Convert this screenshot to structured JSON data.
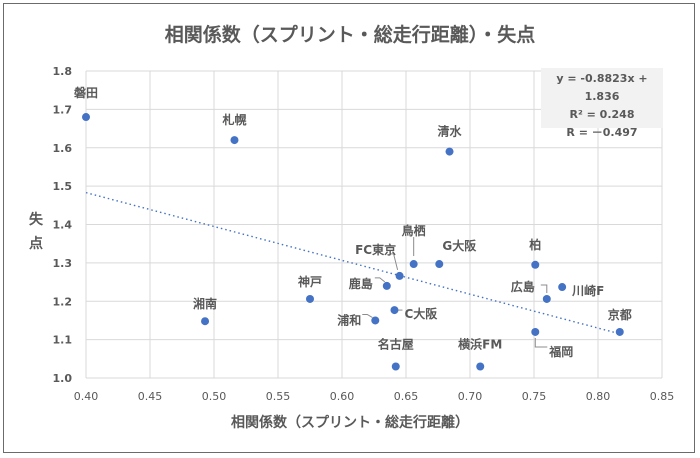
{
  "chart_data": {
    "type": "scatter",
    "title": "相関係数（スプリント・総走行距離）・失点",
    "xlabel": "相関係数（スプリント・総走行距離）",
    "ylabel": "失点",
    "xlim": [
      0.4,
      0.85
    ],
    "ylim": [
      1.0,
      1.8
    ],
    "xticks": [
      "0.40",
      "0.45",
      "0.50",
      "0.55",
      "0.60",
      "0.65",
      "0.70",
      "0.75",
      "0.80",
      "0.85"
    ],
    "yticks": [
      "1.0",
      "1.1",
      "1.2",
      "1.3",
      "1.4",
      "1.5",
      "1.6",
      "1.7",
      "1.8"
    ],
    "grid": true,
    "marker_color": "#4472c4",
    "points": [
      {
        "label": "磐田",
        "x": 0.4,
        "y": 1.68
      },
      {
        "label": "札幌",
        "x": 0.516,
        "y": 1.62
      },
      {
        "label": "清水",
        "x": 0.684,
        "y": 1.59
      },
      {
        "label": "鳥栖",
        "x": 0.656,
        "y": 1.297
      },
      {
        "label": "G大阪",
        "x": 0.676,
        "y": 1.297
      },
      {
        "label": "FC東京",
        "x": 0.645,
        "y": 1.266
      },
      {
        "label": "鹿島",
        "x": 0.635,
        "y": 1.24
      },
      {
        "label": "C大阪",
        "x": 0.641,
        "y": 1.177
      },
      {
        "label": "浦和",
        "x": 0.626,
        "y": 1.15
      },
      {
        "label": "柏",
        "x": 0.751,
        "y": 1.295
      },
      {
        "label": "川崎F",
        "x": 0.772,
        "y": 1.237
      },
      {
        "label": "広島",
        "x": 0.76,
        "y": 1.206
      },
      {
        "label": "京都",
        "x": 0.817,
        "y": 1.12
      },
      {
        "label": "福岡",
        "x": 0.751,
        "y": 1.12
      },
      {
        "label": "神戸",
        "x": 0.575,
        "y": 1.206
      },
      {
        "label": "湘南",
        "x": 0.493,
        "y": 1.148
      },
      {
        "label": "名古屋",
        "x": 0.642,
        "y": 1.03
      },
      {
        "label": "横浜FM",
        "x": 0.708,
        "y": 1.03
      }
    ],
    "trendline": {
      "type": "linear",
      "slope": -0.8823,
      "intercept": 1.836,
      "style": "dotted",
      "color": "#4472c4"
    },
    "annotation": {
      "equation": "y = -0.8823x + 1.836",
      "r_squared": "R² = 0.248",
      "r": "R = －0.497"
    }
  }
}
